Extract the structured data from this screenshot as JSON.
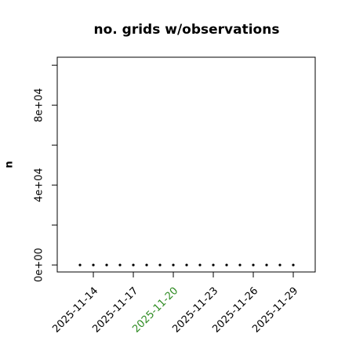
{
  "chart_data": {
    "type": "scatter",
    "title": "no. grids w/observations",
    "y_label": "n",
    "x": [
      "2025-11-13",
      "2025-11-14",
      "2025-11-15",
      "2025-11-16",
      "2025-11-17",
      "2025-11-18",
      "2025-11-19",
      "2025-11-20",
      "2025-11-21",
      "2025-11-22",
      "2025-11-23",
      "2025-11-24",
      "2025-11-25",
      "2025-11-26",
      "2025-11-27",
      "2025-11-28",
      "2025-11-29"
    ],
    "values": [
      0,
      0,
      0,
      0,
      0,
      0,
      0,
      0,
      0,
      0,
      0,
      0,
      0,
      0,
      0,
      0,
      0
    ],
    "color": "#000000",
    "xlim": [
      "2025-11-11T07:00",
      "2025-11-30T15:30"
    ],
    "xticks": [
      "2025-11-14",
      "2025-11-17",
      "2025-11-20",
      "2025-11-23",
      "2025-11-26",
      "2025-11-29"
    ],
    "highlight_xtick": "2025-11-20",
    "highlight_color": "#2e8b22",
    "ylim": [
      -3500,
      104000
    ],
    "yticks": [
      {
        "value": 0,
        "label": "0e+00"
      },
      {
        "value": 40000,
        "label": "4e+04"
      },
      {
        "value": 80000,
        "label": "8e+04"
      }
    ],
    "yminor_ticks": [
      20000,
      60000,
      100000
    ]
  }
}
